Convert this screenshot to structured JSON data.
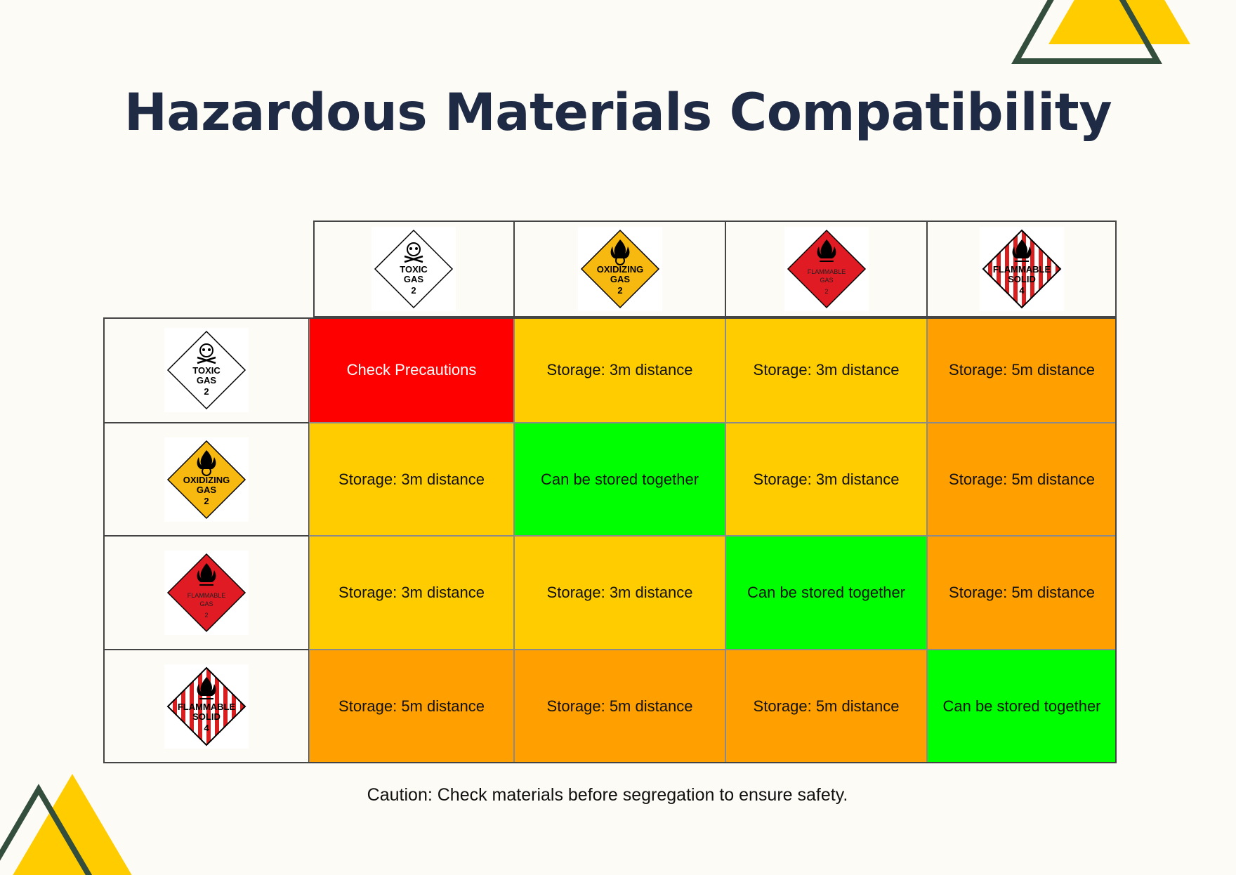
{
  "title": "Hazardous Materials Compatibility",
  "caption": "Caution: Check materials before segregation to ensure safety.",
  "colors": {
    "check_precautions": "#ff0000",
    "storage_3m": "#ffcc00",
    "storage_5m": "#ff9f00",
    "stored_together": "#00ff00",
    "title": "#1f2a44",
    "accent_yellow": "#ffcc00",
    "accent_green": "#344e3e"
  },
  "materials": [
    {
      "name": "toxic-gas",
      "icon": "toxic-gas-placard-icon",
      "lines": [
        "TOXIC",
        "GAS",
        "2"
      ]
    },
    {
      "name": "oxidizing-gas",
      "icon": "oxidizing-gas-placard-icon",
      "lines": [
        "OXIDIZING",
        "GAS",
        "2"
      ]
    },
    {
      "name": "flammable-gas",
      "icon": "flammable-gas-placard-icon",
      "lines": [
        "FLAMMABLE",
        "GAS",
        "2"
      ]
    },
    {
      "name": "flammable-solid",
      "icon": "flammable-solid-placard-icon",
      "lines": [
        "FLAMMABLE",
        "SOLID",
        "4"
      ]
    }
  ],
  "matrix": [
    [
      {
        "text": "Check Precautions",
        "level": "check_precautions"
      },
      {
        "text": "Storage: 3m distance",
        "level": "storage_3m"
      },
      {
        "text": "Storage: 3m distance",
        "level": "storage_3m"
      },
      {
        "text": "Storage: 5m distance",
        "level": "storage_5m"
      }
    ],
    [
      {
        "text": "Storage: 3m distance",
        "level": "storage_3m"
      },
      {
        "text": "Can be stored together",
        "level": "stored_together"
      },
      {
        "text": "Storage: 3m distance",
        "level": "storage_3m"
      },
      {
        "text": "Storage: 5m distance",
        "level": "storage_5m"
      }
    ],
    [
      {
        "text": "Storage: 3m distance",
        "level": "storage_3m"
      },
      {
        "text": "Storage: 3m distance",
        "level": "storage_3m"
      },
      {
        "text": "Can be stored together",
        "level": "stored_together"
      },
      {
        "text": "Storage: 5m distance",
        "level": "storage_5m"
      }
    ],
    [
      {
        "text": "Storage: 5m distance",
        "level": "storage_5m"
      },
      {
        "text": "Storage: 5m distance",
        "level": "storage_5m"
      },
      {
        "text": "Storage: 5m distance",
        "level": "storage_5m"
      },
      {
        "text": "Can be stored together",
        "level": "stored_together"
      }
    ]
  ]
}
